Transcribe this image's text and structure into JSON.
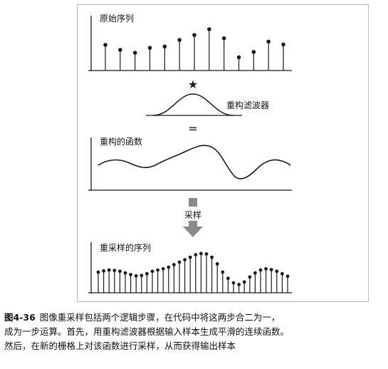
{
  "labels": {
    "original": "原始序列",
    "filter": "重构滤波器",
    "reconstructed": "重构的函数",
    "sample": "采样",
    "resampled": "重采样的序列",
    "convolve_symbol": "★",
    "equals_symbol": "="
  },
  "caption": {
    "number": "图4-36",
    "line1": "图像重采样包括两个逻辑步骤，在代码中将这两步合二为一，",
    "line2": "成为一步运算。首先，用重构滤波器根据输入样本生成平滑的连续函数。",
    "line3": "然后，在新的栅格上对该函数进行采样，从而获得输出样本"
  },
  "colors": {
    "ink": "#1a1a1a",
    "arrow": "#8a8a8a",
    "frame": "#b8b8b8"
  },
  "chart_data": {
    "type": "diagram",
    "original_samples": [
      0.62,
      0.5,
      0.43,
      0.55,
      0.58,
      0.74,
      0.86,
      1.0,
      0.78,
      0.32,
      0.45,
      0.7,
      0.63
    ],
    "resampled_samples": [
      0.5,
      0.53,
      0.55,
      0.54,
      0.52,
      0.48,
      0.44,
      0.41,
      0.42,
      0.46,
      0.52,
      0.55,
      0.58,
      0.62,
      0.68,
      0.74,
      0.8,
      0.86,
      0.92,
      0.95,
      0.94,
      0.86,
      0.7,
      0.5,
      0.35,
      0.24,
      0.2,
      0.26,
      0.38,
      0.48,
      0.55,
      0.58,
      0.56,
      0.52,
      0.46,
      0.4
    ]
  }
}
